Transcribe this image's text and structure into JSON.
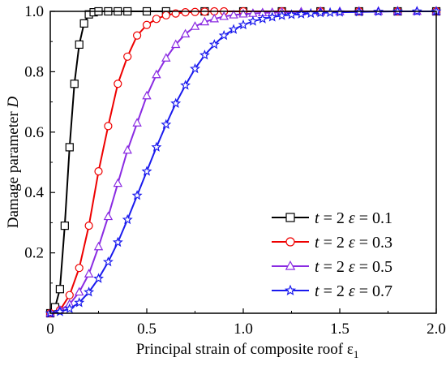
{
  "chart_data": {
    "type": "line",
    "xlabel": "Principal strain of composite roof ε",
    "xlabel_sub": "1",
    "ylabel_main": "Damage parameter ",
    "ylabel_var": "D",
    "xlim": [
      0,
      2.0
    ],
    "ylim": [
      0,
      1.0
    ],
    "x_ticks": [
      "0",
      "0.5",
      "1.0",
      "1.5",
      "2.0"
    ],
    "y_ticks": [
      "0.2",
      "0.4",
      "0.6",
      "0.8",
      "1.0"
    ],
    "x_tick_values": [
      0,
      0.5,
      1.0,
      1.5,
      2.0
    ],
    "y_tick_values": [
      0.2,
      0.4,
      0.6,
      0.8,
      1.0
    ],
    "legend_position": "bottom-right",
    "series": [
      {
        "name": "t = 2 ε = 0.1",
        "label_t": "t",
        "label_mid": " = 2 ",
        "label_eps": "ε",
        "label_end": " = 0.1",
        "color": "#000000",
        "marker": "square",
        "x": [
          0.0,
          0.025,
          0.05,
          0.075,
          0.1,
          0.125,
          0.15,
          0.175,
          0.2,
          0.225,
          0.25,
          0.3,
          0.35,
          0.4,
          0.5,
          0.6,
          0.8,
          1.0,
          1.2,
          1.4,
          1.6,
          1.8,
          2.0
        ],
        "y": [
          0.0,
          0.02,
          0.08,
          0.29,
          0.55,
          0.76,
          0.89,
          0.96,
          0.99,
          0.997,
          1.0,
          1.0,
          1.0,
          1.0,
          1.0,
          1.0,
          1.0,
          1.0,
          1.0,
          1.0,
          1.0,
          1.0,
          1.0
        ]
      },
      {
        "name": "t = 2 ε = 0.3",
        "label_t": "t",
        "label_mid": " = 2 ",
        "label_eps": "ε",
        "label_end": " = 0.3",
        "color": "#ee0000",
        "marker": "circle",
        "x": [
          0.0,
          0.05,
          0.1,
          0.15,
          0.2,
          0.25,
          0.3,
          0.35,
          0.4,
          0.45,
          0.5,
          0.55,
          0.6,
          0.65,
          0.7,
          0.75,
          0.8,
          0.85,
          0.9,
          1.0,
          1.2,
          1.4,
          1.6,
          1.8,
          2.0
        ],
        "y": [
          0.0,
          0.01,
          0.06,
          0.15,
          0.29,
          0.47,
          0.62,
          0.76,
          0.85,
          0.92,
          0.955,
          0.975,
          0.987,
          0.993,
          0.997,
          0.998,
          0.999,
          1.0,
          1.0,
          1.0,
          1.0,
          1.0,
          1.0,
          1.0,
          1.0
        ]
      },
      {
        "name": "t = 2 ε = 0.5",
        "label_t": "t",
        "label_mid": " = 2 ",
        "label_eps": "ε",
        "label_end": " = 0.5",
        "color": "#8a2be2",
        "marker": "triangle",
        "x": [
          0.0,
          0.05,
          0.1,
          0.15,
          0.2,
          0.25,
          0.3,
          0.35,
          0.4,
          0.45,
          0.5,
          0.55,
          0.6,
          0.65,
          0.7,
          0.75,
          0.8,
          0.85,
          0.9,
          0.95,
          1.0,
          1.05,
          1.1,
          1.15,
          1.2,
          1.3,
          1.4,
          1.5,
          1.6,
          1.7,
          1.8,
          1.9,
          2.0
        ],
        "y": [
          0.0,
          0.01,
          0.03,
          0.07,
          0.13,
          0.22,
          0.32,
          0.43,
          0.54,
          0.63,
          0.72,
          0.79,
          0.845,
          0.89,
          0.925,
          0.95,
          0.965,
          0.975,
          0.983,
          0.988,
          0.991,
          0.993,
          0.995,
          0.996,
          0.997,
          0.998,
          0.999,
          0.999,
          1.0,
          1.0,
          1.0,
          1.0,
          1.0
        ]
      },
      {
        "name": "t = 2 ε = 0.7",
        "label_t": "t",
        "label_mid": " = 2 ",
        "label_eps": "ε",
        "label_end": " = 0.7",
        "color": "#1a1aee",
        "marker": "star",
        "x": [
          0.0,
          0.05,
          0.1,
          0.15,
          0.2,
          0.25,
          0.3,
          0.35,
          0.4,
          0.45,
          0.5,
          0.55,
          0.6,
          0.65,
          0.7,
          0.75,
          0.8,
          0.85,
          0.9,
          0.95,
          1.0,
          1.05,
          1.1,
          1.15,
          1.2,
          1.25,
          1.3,
          1.35,
          1.4,
          1.45,
          1.5,
          1.6,
          1.7,
          1.8,
          1.9,
          2.0
        ],
        "y": [
          0.0,
          0.005,
          0.015,
          0.035,
          0.07,
          0.115,
          0.17,
          0.235,
          0.31,
          0.39,
          0.47,
          0.55,
          0.625,
          0.695,
          0.755,
          0.81,
          0.855,
          0.89,
          0.92,
          0.94,
          0.955,
          0.967,
          0.975,
          0.981,
          0.986,
          0.989,
          0.991,
          0.993,
          0.995,
          0.996,
          0.997,
          0.998,
          0.999,
          1.0,
          1.0,
          1.0
        ]
      }
    ]
  }
}
